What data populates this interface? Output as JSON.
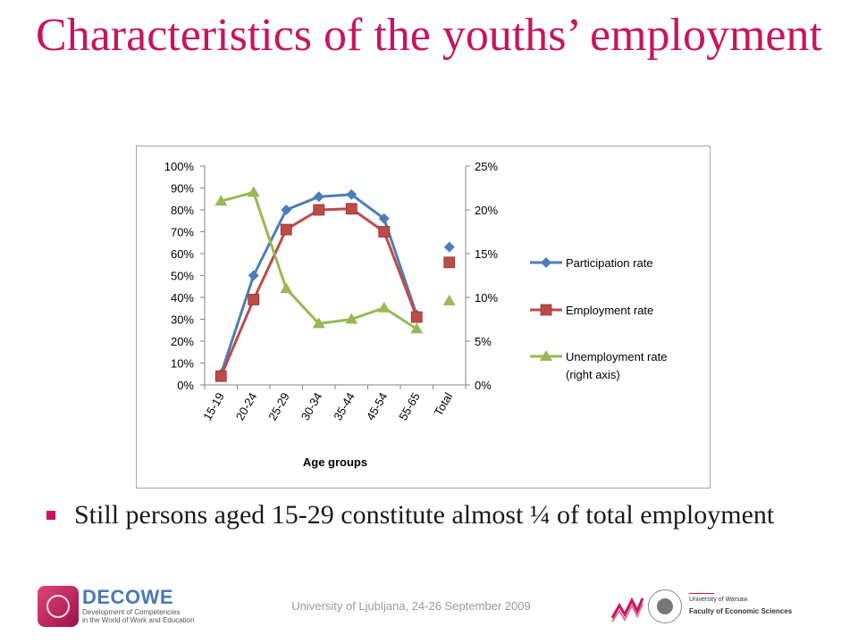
{
  "slide": {
    "title": "Characteristics of the youths’ employment",
    "bullet": "Still persons aged 15-29 constitute almost ¼ of total employment",
    "footer": "University of Ljubljana, 24-26 September 2009"
  },
  "logos": {
    "decowe_name": "DECOWE",
    "decowe_line1": "Development of Competencies",
    "decowe_line2": "in the World of Work and Education",
    "uw_line1": "University of Warsaw",
    "uw_line2": "Faculty of Economic Sciences"
  },
  "colors": {
    "title": "#c8145f",
    "participation": "#4a7ebb",
    "employment": "#be4b48",
    "unemployment": "#98b954"
  },
  "chart_data": {
    "type": "line",
    "title": "",
    "xlabel": "Age groups",
    "ylabel": "",
    "categories": [
      "15-19",
      "20-24",
      "25-29",
      "30-34",
      "35-44",
      "45-54",
      "55-65",
      "Total"
    ],
    "y_left": {
      "ylim": [
        0,
        100
      ],
      "ticks": [
        0,
        10,
        20,
        30,
        40,
        50,
        60,
        70,
        80,
        90,
        100
      ],
      "unit": "%"
    },
    "y_right": {
      "ylim": [
        0,
        25
      ],
      "ticks": [
        0,
        5,
        10,
        15,
        20,
        25
      ],
      "unit": "%"
    },
    "grid": false,
    "legend_position": "right",
    "series": [
      {
        "name": "Participation rate",
        "axis": "left",
        "color": "#4a7ebb",
        "marker": "diamond",
        "values": [
          5,
          50,
          80,
          86,
          87,
          76,
          32,
          63
        ],
        "connected_count": 7
      },
      {
        "name": "Employment rate",
        "axis": "left",
        "color": "#be4b48",
        "marker": "square",
        "values": [
          4,
          39,
          71,
          80,
          80.5,
          70,
          31,
          56
        ],
        "connected_count": 7
      },
      {
        "name": "Unemployment rate (right axis)",
        "axis": "right",
        "color": "#98b954",
        "marker": "triangle",
        "values": [
          21,
          22,
          11,
          7,
          7.5,
          8.8,
          6.4,
          9.6
        ],
        "connected_count": 7
      }
    ]
  }
}
